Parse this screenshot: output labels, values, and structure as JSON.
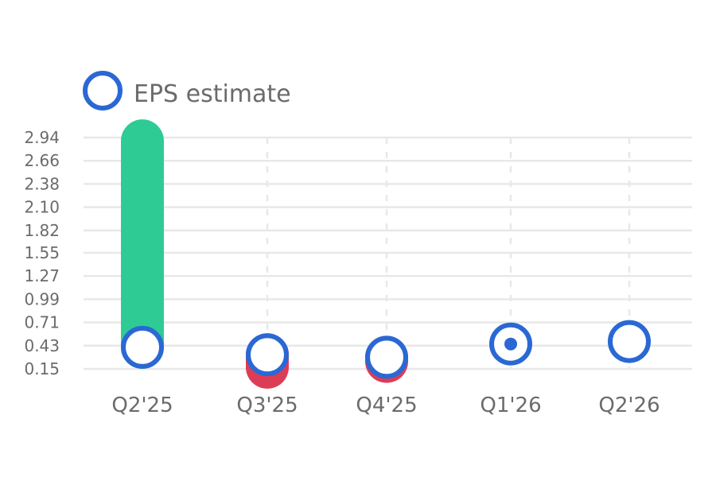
{
  "chart_data": {
    "type": "bar",
    "categories": [
      "Q2'25",
      "Q3'25",
      "Q4'25",
      "Q1'26",
      "Q2'26"
    ],
    "y_ticks": [
      "2.94",
      "2.66",
      "2.38",
      "2.10",
      "1.82",
      "1.55",
      "1.27",
      "0.99",
      "0.71",
      "0.43",
      "0.15"
    ],
    "ylim": [
      0.15,
      2.94
    ],
    "series": [
      {
        "name": "EPS estimate",
        "values": [
          0.41,
          0.32,
          0.29,
          0.45,
          0.48
        ]
      },
      {
        "name": "",
        "values": [
          2.9,
          0.17,
          0.24,
          null,
          null
        ]
      }
    ],
    "legend": {
      "label": "EPS estimate",
      "position": "top-left"
    },
    "grid": true,
    "colors": {
      "beat": "#2ecc94",
      "miss": "#dc3d55",
      "estimate_ring": "#2a68d4",
      "grid": "#e8e8e8",
      "text": "#6b6b6b"
    }
  }
}
